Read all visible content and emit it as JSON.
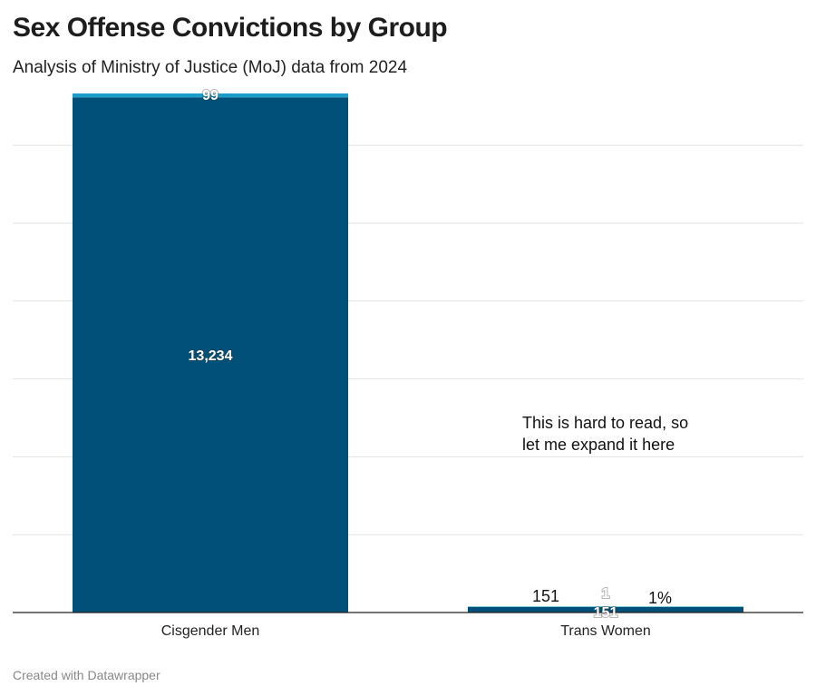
{
  "title": "Sex Offense Convictions by Group",
  "subtitle": "Analysis of Ministry of Justice (MoJ) data from 2024",
  "footer": "Created with Datawrapper",
  "chart_data": {
    "type": "bar",
    "stacked": true,
    "categories": [
      "Cisgender Men",
      "Trans Women"
    ],
    "series": [
      {
        "values": [
          13234,
          151
        ],
        "labels": [
          "13,234",
          "151"
        ],
        "color": "#00507a"
      },
      {
        "values": [
          99,
          1
        ],
        "labels": [
          "99",
          "1"
        ],
        "color": "#1b9cc9"
      }
    ],
    "ylim": [
      0,
      13333
    ],
    "gridlines": [
      2000,
      4000,
      6000,
      8000,
      10000,
      12000
    ],
    "grid": true,
    "annotations": [
      {
        "text_lines": [
          "This is hard to read, so",
          "let me expand it here"
        ]
      },
      {
        "text": "151"
      },
      {
        "text": "1%"
      }
    ]
  }
}
